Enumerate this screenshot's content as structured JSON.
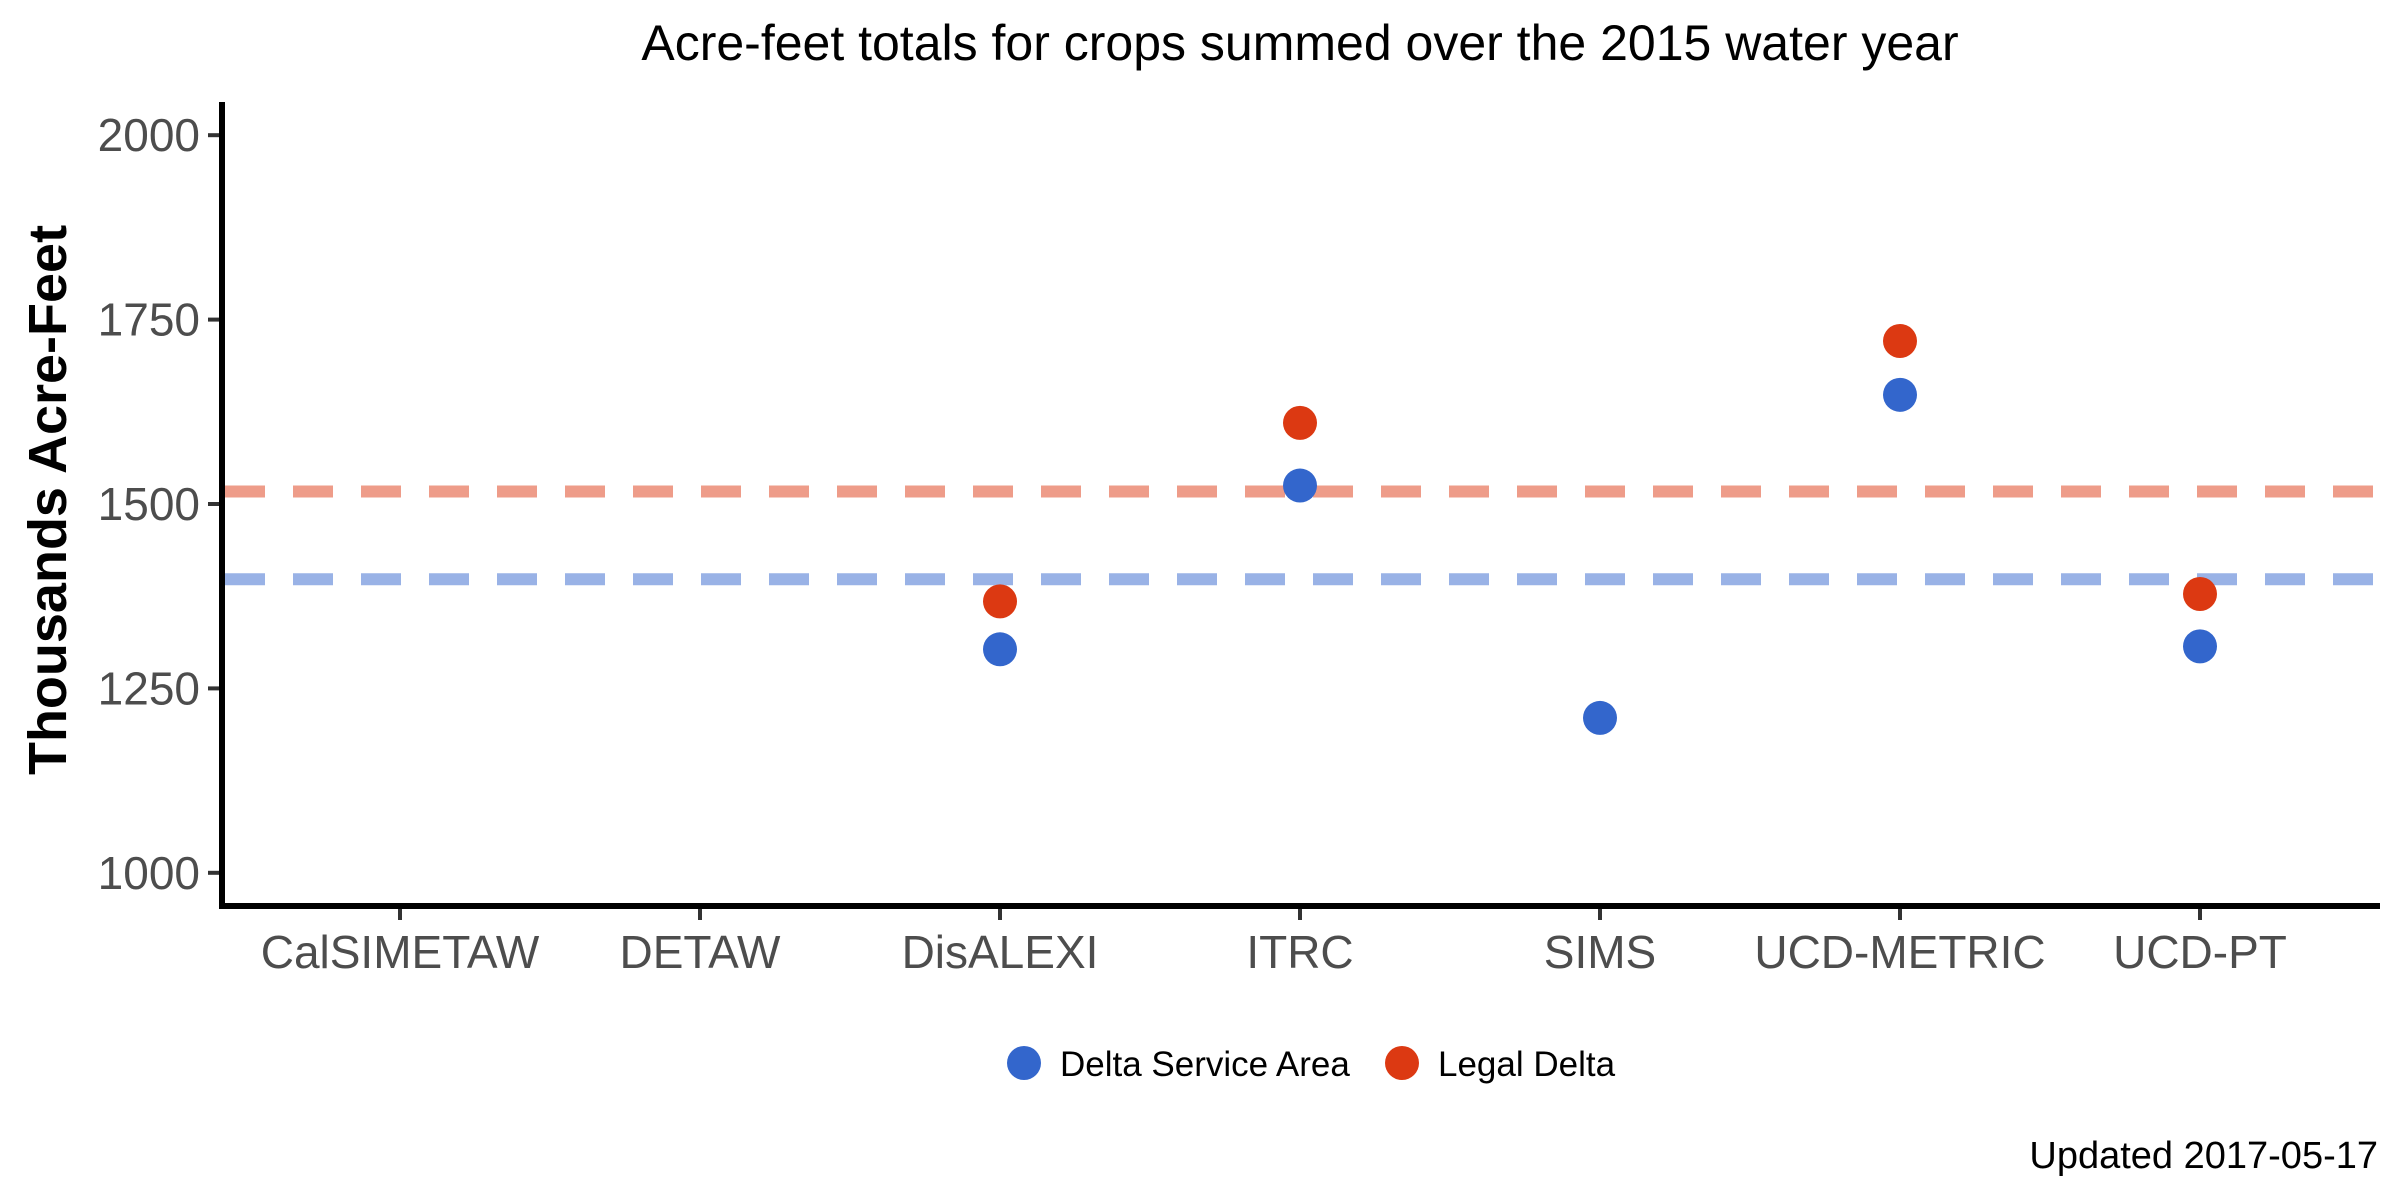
{
  "chart_data": {
    "type": "scatter",
    "title": "Acre-feet totals for crops summed over the 2015 water year",
    "xlabel": "",
    "ylabel": "Thousands Acre-Feet",
    "categories": [
      "CalSIMETAW",
      "DETAW",
      "DisALEXI",
      "ITRC",
      "SIMS",
      "UCD-METRIC",
      "UCD-PT"
    ],
    "ylim": [
      955,
      2045
    ],
    "yticks": [
      1000,
      1250,
      1500,
      1750,
      2000
    ],
    "grid": false,
    "legend_position": "bottom",
    "series": [
      {
        "name": "Delta Service Area",
        "color": "#3366cc",
        "values": [
          null,
          null,
          1303,
          1525,
          1210,
          1648,
          1307
        ],
        "reference_line": 1398,
        "reference_color": "#99b2e6"
      },
      {
        "name": "Legal Delta",
        "color": "#dc3912",
        "values": [
          null,
          null,
          1368,
          1610,
          null,
          1721,
          1378
        ],
        "reference_line": 1517,
        "reference_color": "#ee9c89"
      }
    ],
    "caption": "Updated  2017-05-17"
  }
}
